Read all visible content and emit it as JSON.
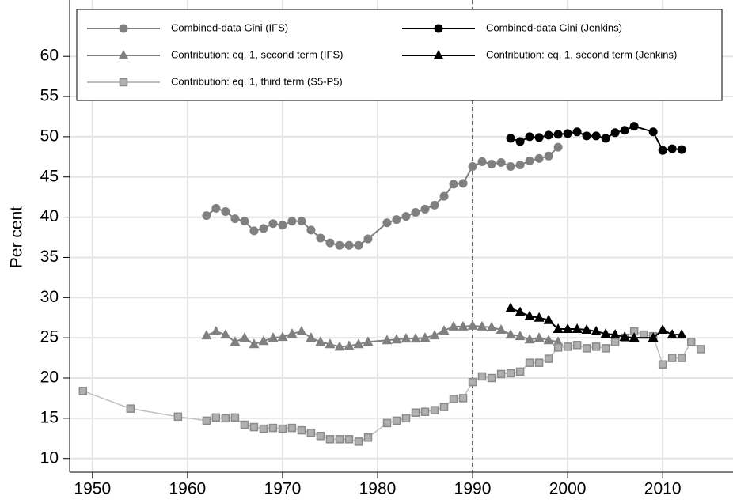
{
  "chart_data": {
    "type": "line",
    "y_label": "Per cent",
    "xlim": [
      1947.6,
      2017.4
    ],
    "xticks": [
      1950,
      1960,
      1970,
      1980,
      1990,
      2000,
      2010
    ],
    "ylim": [
      8.3,
      67
    ],
    "yticks": [
      10,
      15,
      20,
      25,
      30,
      35,
      40,
      45,
      50,
      55,
      60
    ],
    "grid": true,
    "vline": 1990,
    "series": [
      {
        "name": "Combined-data Gini (IFS)",
        "color": "#808080",
        "marker": "circle",
        "x": [
          1962,
          1963,
          1964,
          1965,
          1966,
          1967,
          1968,
          1969,
          1970,
          1971,
          1972,
          1973,
          1974,
          1975,
          1976,
          1977,
          1978,
          1979,
          1981,
          1982,
          1983,
          1984,
          1985,
          1986,
          1987,
          1988,
          1989,
          1990,
          1991,
          1992,
          1993,
          1994,
          1995,
          1996,
          1997,
          1998,
          1999
        ],
        "values": [
          40.2,
          41.1,
          40.7,
          39.8,
          39.5,
          38.3,
          38.6,
          39.2,
          39.0,
          39.5,
          39.5,
          38.4,
          37.4,
          36.8,
          36.5,
          36.5,
          36.5,
          37.3,
          39.3,
          39.7,
          40.1,
          40.6,
          41.0,
          41.5,
          42.6,
          44.1,
          44.2,
          46.3,
          46.9,
          46.6,
          46.8,
          46.3,
          46.5,
          47.0,
          47.3,
          47.6,
          48.7
        ]
      },
      {
        "name": "Contribution: eq. 1, second term (IFS)",
        "color": "#808080",
        "marker": "triangle",
        "x": [
          1962,
          1963,
          1964,
          1965,
          1966,
          1967,
          1968,
          1969,
          1970,
          1971,
          1972,
          1973,
          1974,
          1975,
          1976,
          1977,
          1978,
          1979,
          1981,
          1982,
          1983,
          1984,
          1985,
          1986,
          1987,
          1988,
          1989,
          1990,
          1991,
          1992,
          1993,
          1994,
          1995,
          1996,
          1997,
          1998,
          1999
        ],
        "values": [
          25.3,
          25.8,
          25.4,
          24.5,
          25.0,
          24.2,
          24.6,
          25.0,
          25.1,
          25.5,
          25.8,
          25.0,
          24.5,
          24.2,
          23.9,
          24.0,
          24.2,
          24.5,
          24.7,
          24.8,
          24.9,
          24.9,
          25.0,
          25.3,
          25.9,
          26.4,
          26.4,
          26.5,
          26.4,
          26.3,
          26.0,
          25.4,
          25.2,
          24.8,
          25.0,
          24.7,
          24.5
        ]
      },
      {
        "name": "Contribution: eq. 1, third term (S5-P5)",
        "color": "#c0c0c0",
        "marker": "square",
        "x": [
          1949,
          1954,
          1959,
          1962,
          1963,
          1964,
          1965,
          1966,
          1967,
          1968,
          1969,
          1970,
          1971,
          1972,
          1973,
          1974,
          1975,
          1976,
          1977,
          1978,
          1979,
          1981,
          1982,
          1983,
          1984,
          1985,
          1986,
          1987,
          1988,
          1989,
          1990,
          1991,
          1992,
          1993,
          1994,
          1995,
          1996,
          1997,
          1998,
          1999,
          2000,
          2001,
          2002,
          2003,
          2004,
          2005,
          2006,
          2007,
          2008,
          2009,
          2010,
          2011,
          2012,
          2013,
          2014
        ],
        "values": [
          18.4,
          16.2,
          15.2,
          14.7,
          15.1,
          15.0,
          15.1,
          14.2,
          13.9,
          13.7,
          13.8,
          13.7,
          13.8,
          13.5,
          13.2,
          12.8,
          12.4,
          12.4,
          12.4,
          12.1,
          12.6,
          14.4,
          14.7,
          15.0,
          15.7,
          15.8,
          16.0,
          16.4,
          17.4,
          17.5,
          19.5,
          20.2,
          20.0,
          20.5,
          20.6,
          20.8,
          21.9,
          21.9,
          22.4,
          23.8,
          23.9,
          24.1,
          23.7,
          23.9,
          23.7,
          24.5,
          25.0,
          25.8,
          25.4,
          25.2,
          21.7,
          22.5,
          22.5,
          24.5,
          23.6
        ]
      },
      {
        "name": "Combined-data Gini (Jenkins)",
        "color": "#000000",
        "marker": "circle",
        "x": [
          1994,
          1995,
          1996,
          1997,
          1998,
          1999,
          2000,
          2001,
          2002,
          2003,
          2004,
          2005,
          2006,
          2007,
          2009,
          2010,
          2011,
          2012
        ],
        "values": [
          49.8,
          49.4,
          50.0,
          49.9,
          50.2,
          50.3,
          50.4,
          50.6,
          50.1,
          50.1,
          49.8,
          50.5,
          50.8,
          51.3,
          50.6,
          48.3,
          48.5,
          48.4
        ]
      },
      {
        "name": "Contribution: eq. 1, second term (Jenkins)",
        "color": "#000000",
        "marker": "triangle",
        "x": [
          1994,
          1995,
          1996,
          1997,
          1998,
          1999,
          2000,
          2001,
          2002,
          2003,
          2004,
          2005,
          2006,
          2007,
          2009,
          2010,
          2011,
          2012
        ],
        "values": [
          28.7,
          28.2,
          27.7,
          27.5,
          27.2,
          26.1,
          26.1,
          26.1,
          26.0,
          25.8,
          25.5,
          25.4,
          25.1,
          25.0,
          25.0,
          26.0,
          25.4,
          25.4
        ]
      }
    ]
  }
}
